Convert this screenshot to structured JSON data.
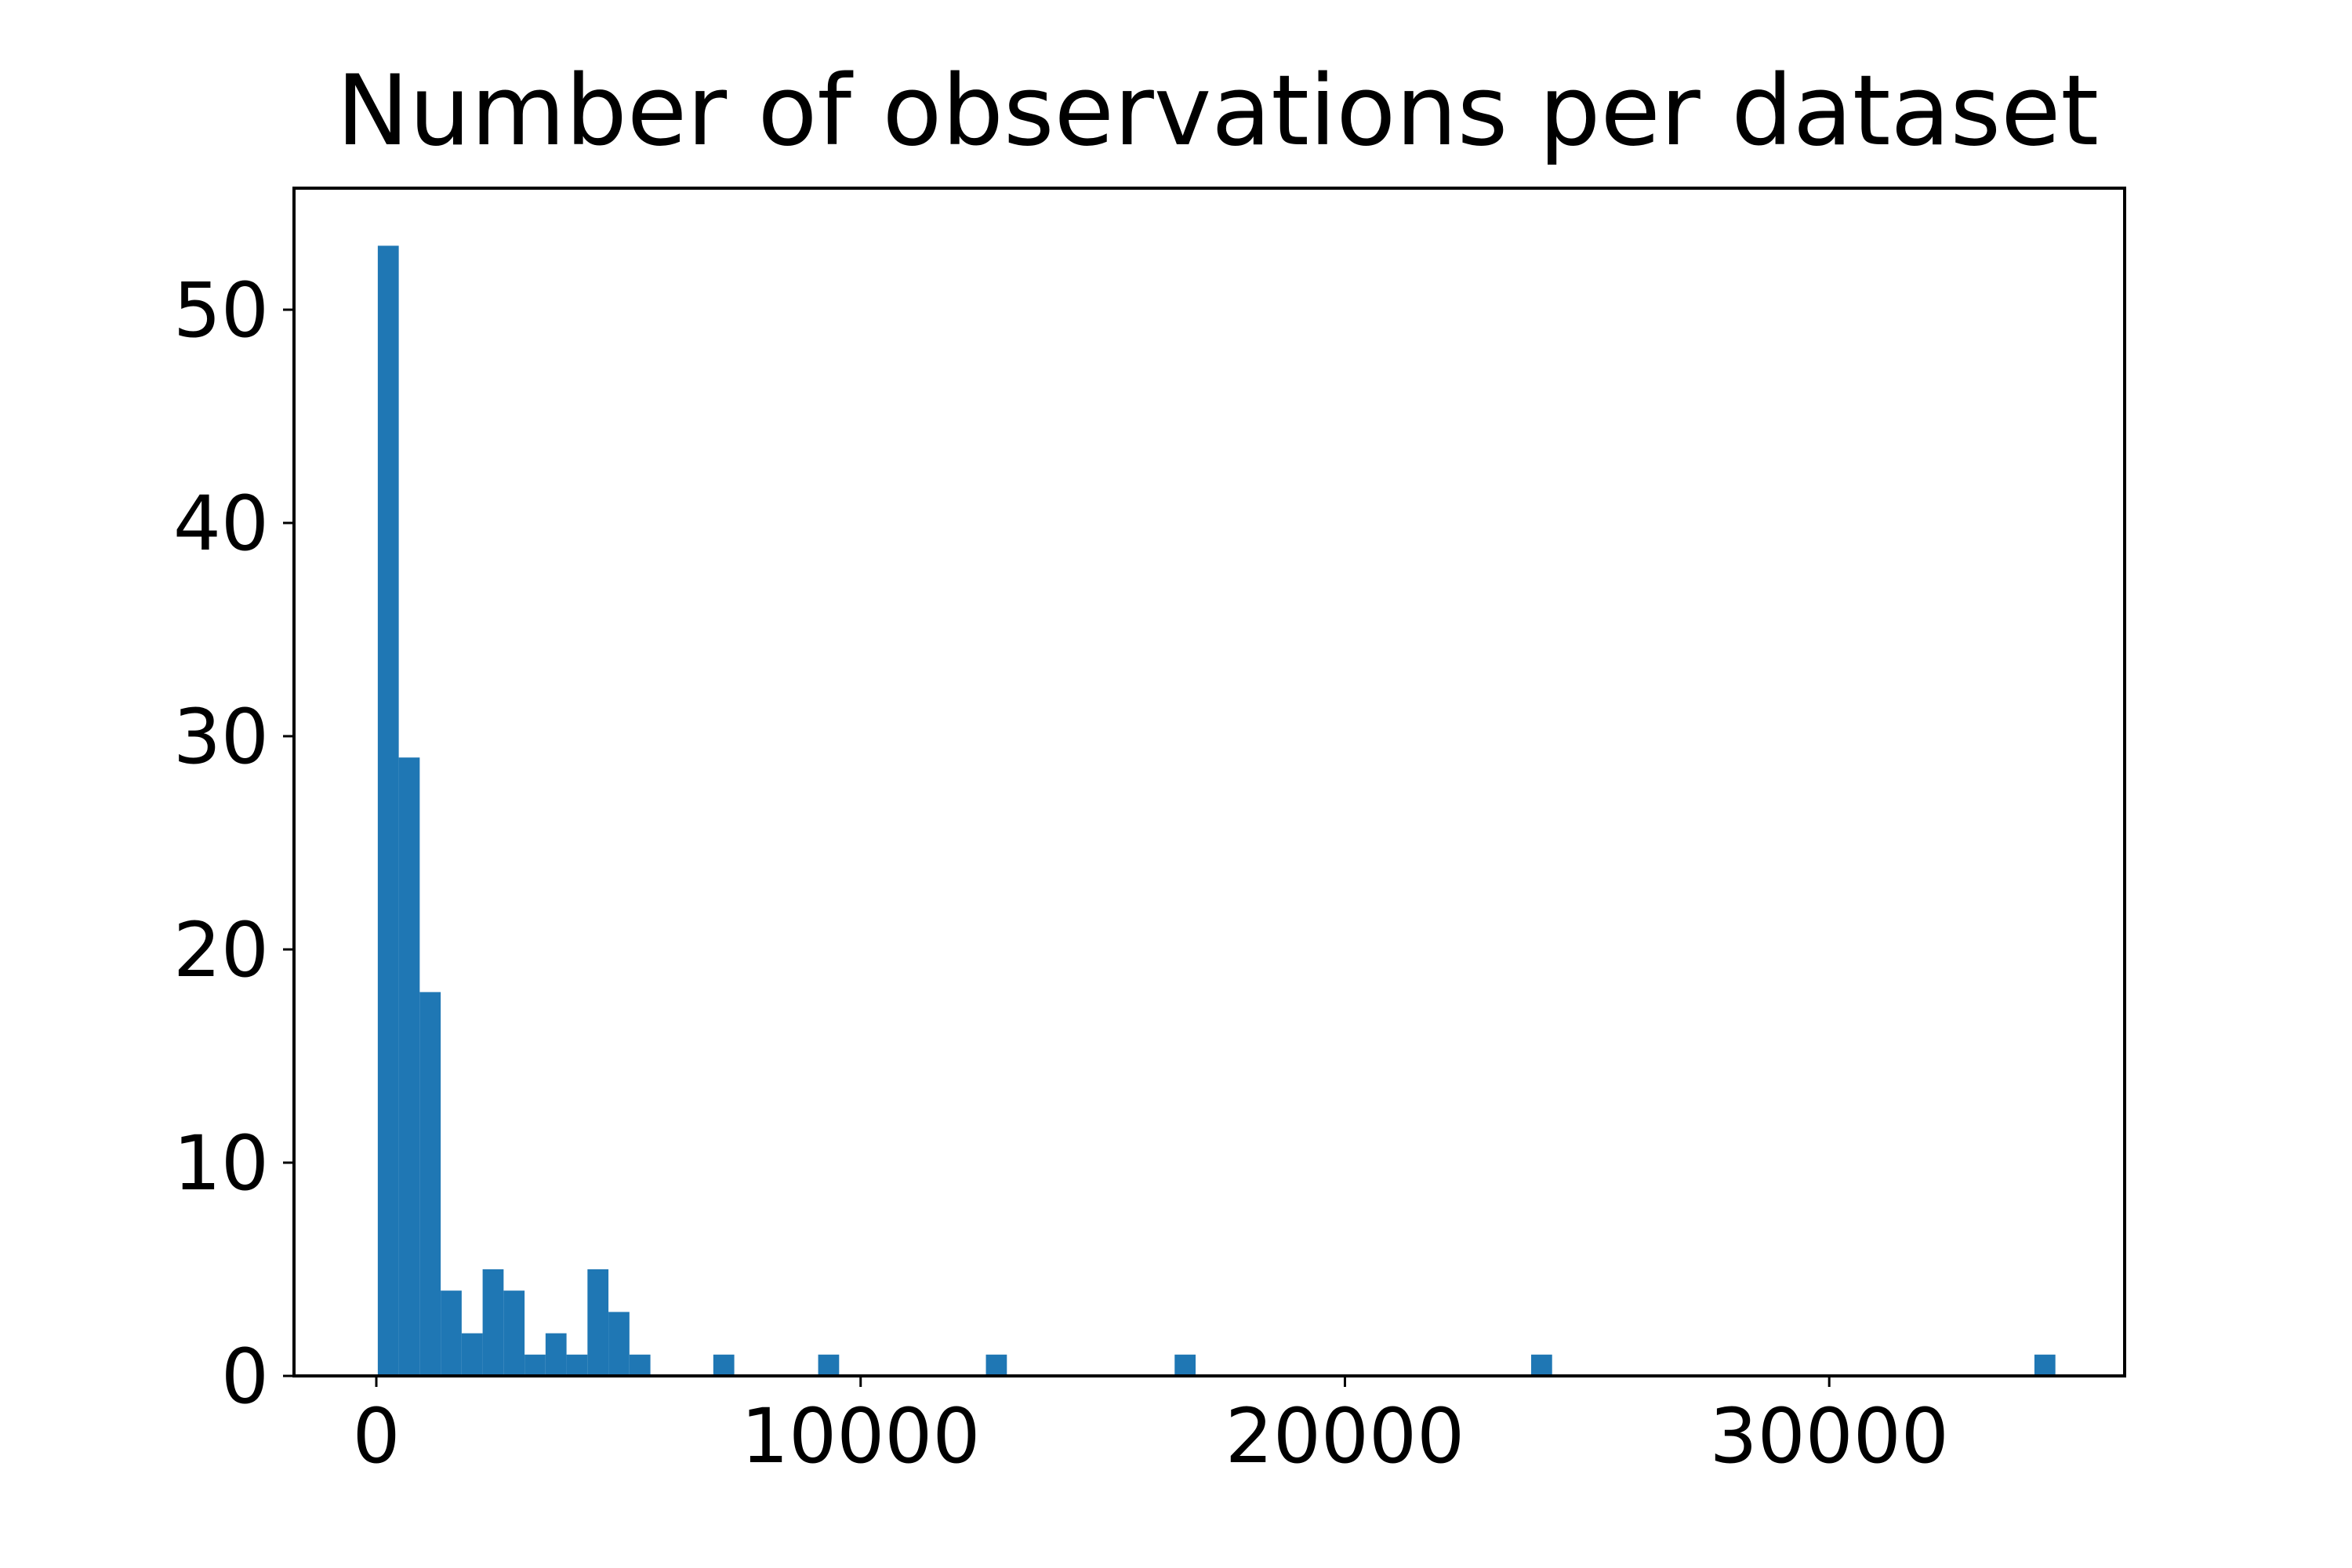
{
  "chart_data": {
    "type": "bar",
    "title": "Number of observations per dataset",
    "xlabel": "",
    "ylabel": "",
    "bin_width": 433,
    "bins": [
      {
        "start": 30,
        "count": 53
      },
      {
        "start": 463,
        "count": 29
      },
      {
        "start": 896,
        "count": 18
      },
      {
        "start": 1329,
        "count": 4
      },
      {
        "start": 1762,
        "count": 2
      },
      {
        "start": 2195,
        "count": 5
      },
      {
        "start": 2628,
        "count": 4
      },
      {
        "start": 3061,
        "count": 1
      },
      {
        "start": 3494,
        "count": 2
      },
      {
        "start": 3927,
        "count": 1
      },
      {
        "start": 4360,
        "count": 5
      },
      {
        "start": 4793,
        "count": 3
      },
      {
        "start": 5226,
        "count": 1
      },
      {
        "start": 6958,
        "count": 1
      },
      {
        "start": 9123,
        "count": 1
      },
      {
        "start": 12587,
        "count": 1
      },
      {
        "start": 16484,
        "count": 1
      },
      {
        "start": 23845,
        "count": 1
      },
      {
        "start": 34237,
        "count": 1
      }
    ],
    "xlim": [
      -1700,
      36100
    ],
    "ylim": [
      0,
      55.7
    ],
    "x_ticks": [
      {
        "value": 0,
        "label": "0"
      },
      {
        "value": 10000,
        "label": "10000"
      },
      {
        "value": 20000,
        "label": "20000"
      },
      {
        "value": 30000,
        "label": "30000"
      }
    ],
    "y_ticks": [
      {
        "value": 0,
        "label": "0"
      },
      {
        "value": 10,
        "label": "10"
      },
      {
        "value": 20,
        "label": "20"
      },
      {
        "value": 30,
        "label": "30"
      },
      {
        "value": 40,
        "label": "40"
      },
      {
        "value": 50,
        "label": "50"
      }
    ],
    "grid": false,
    "bar_color": "#1f77b4"
  }
}
